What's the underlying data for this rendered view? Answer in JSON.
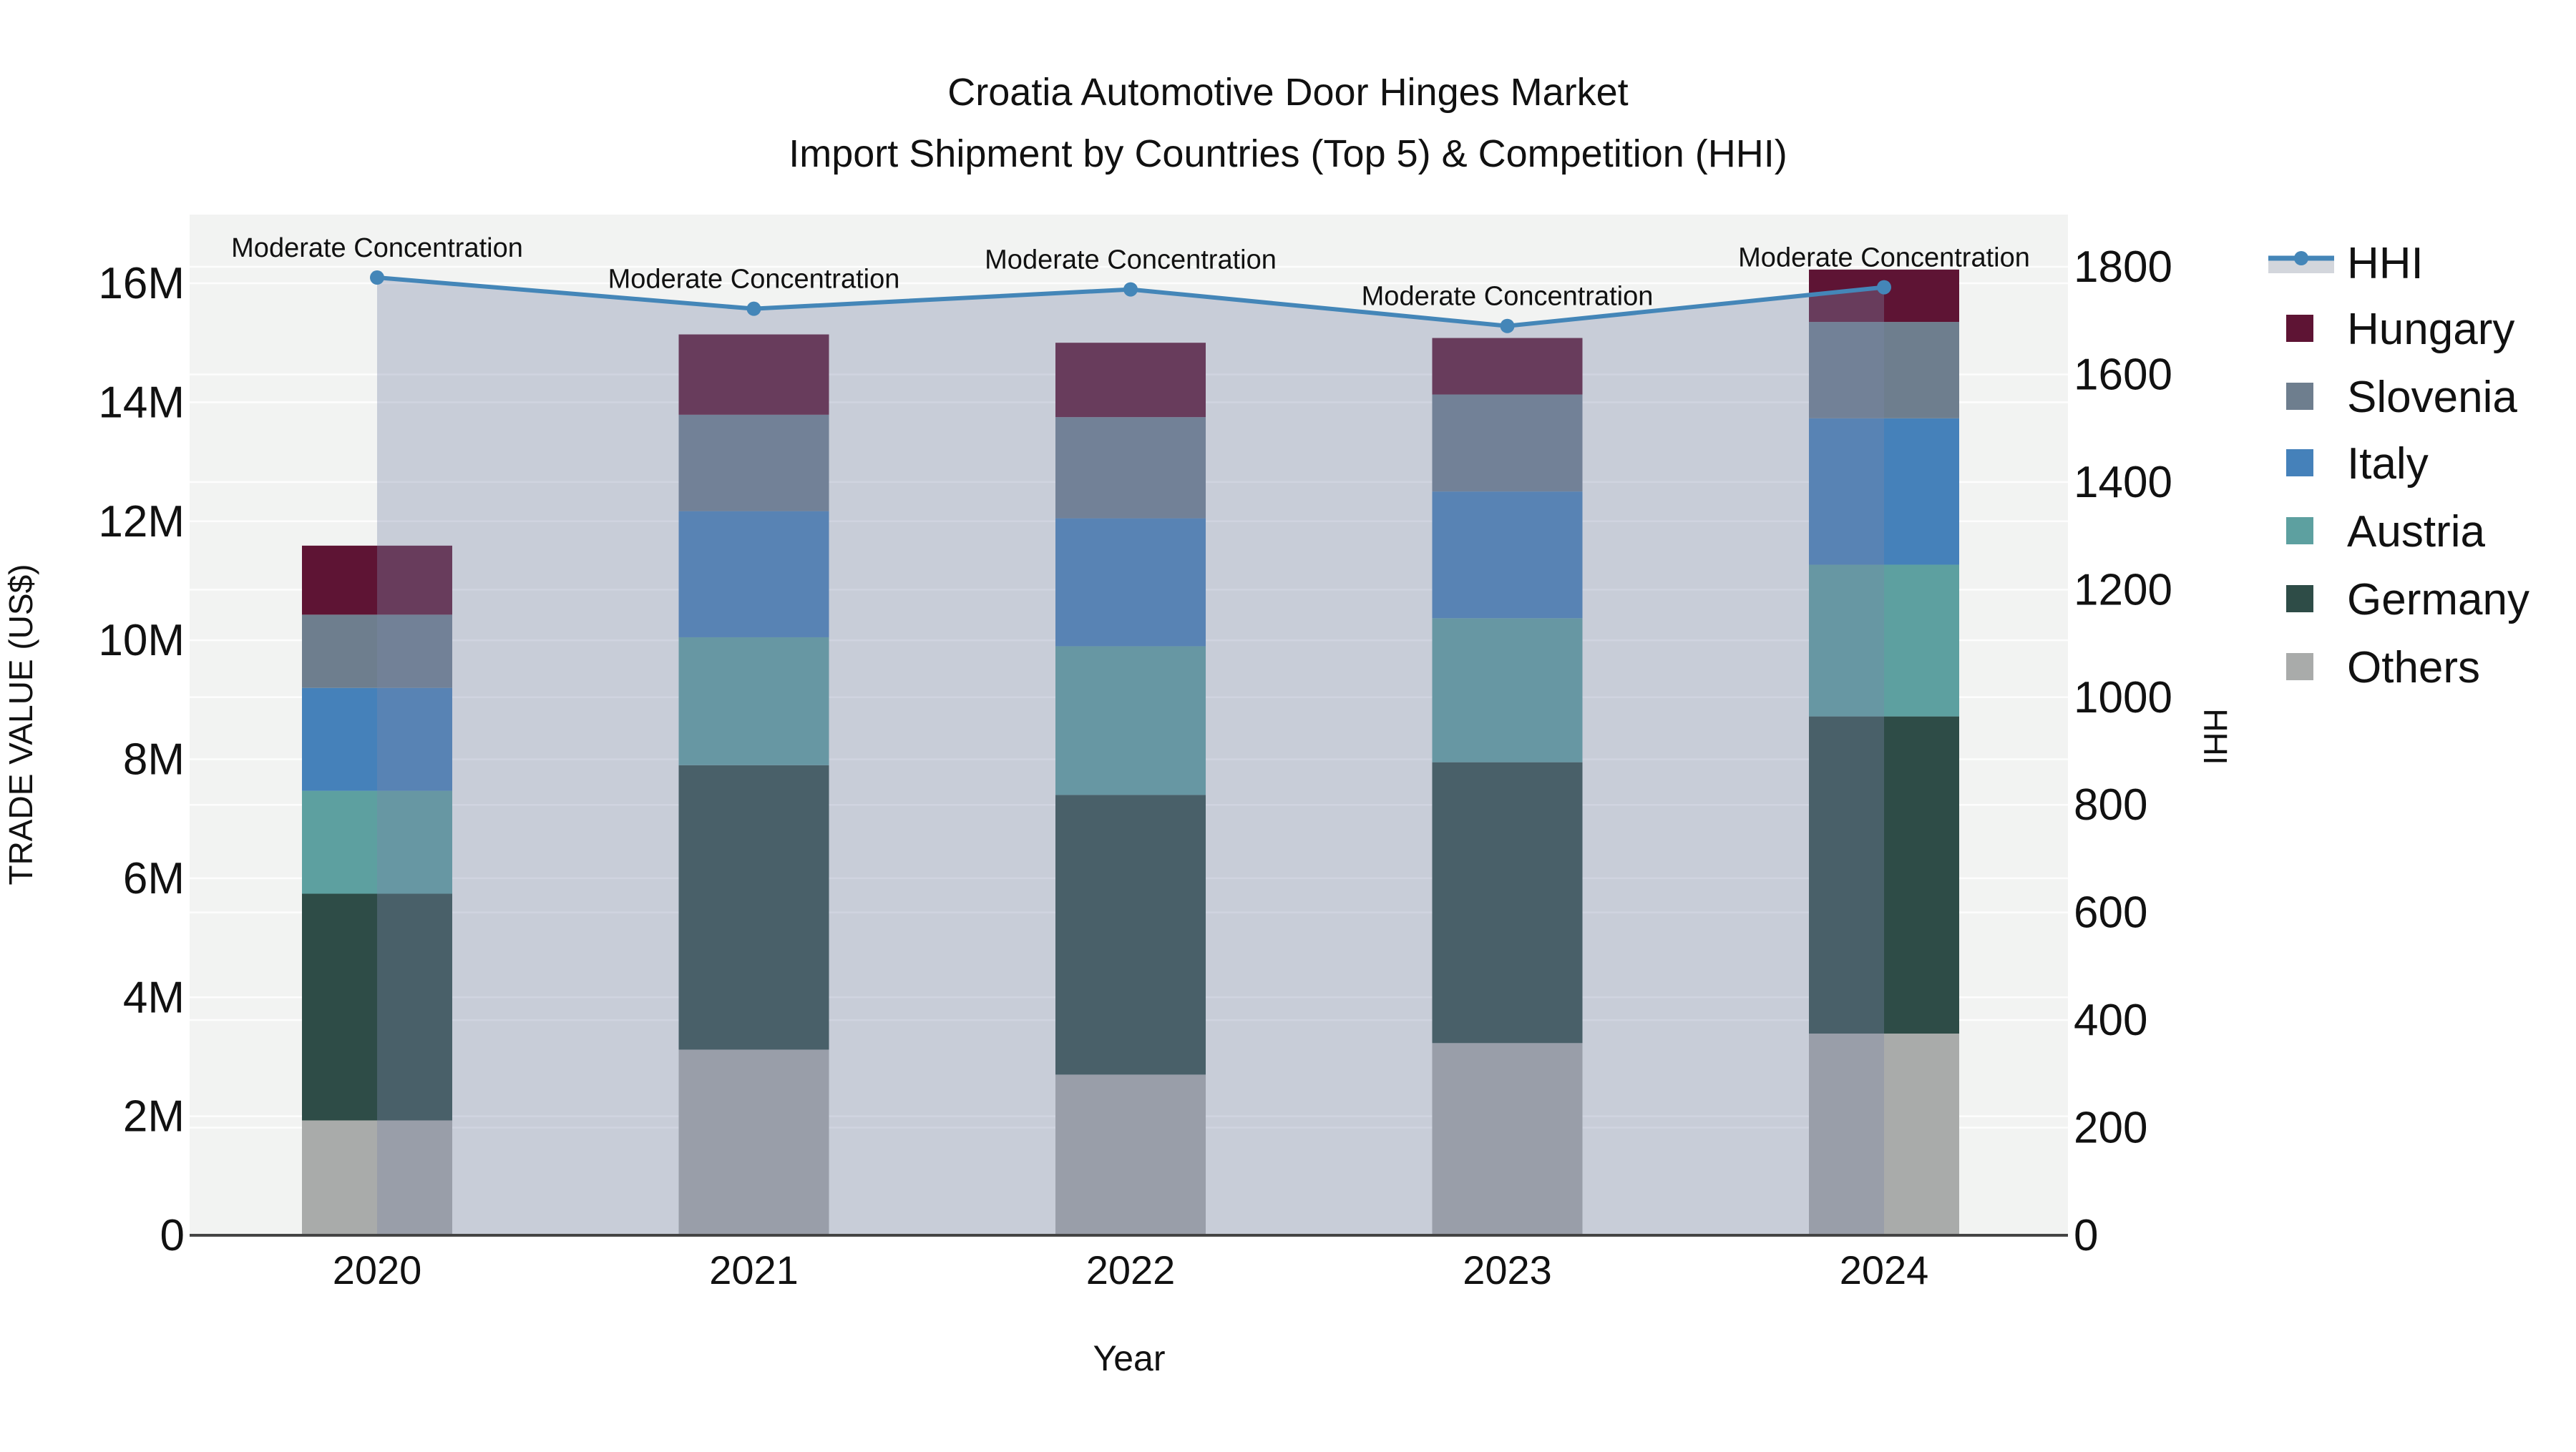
{
  "title": {
    "line1": "Croatia Automotive Door Hinges Market",
    "line2": "Import Shipment by Countries (Top 5) & Competition (HHI)"
  },
  "axes": {
    "x_title": "Year",
    "y_left_title": "TRADE VALUE (US$)",
    "y_right_title": "HHI",
    "x_ticks": [
      "2020",
      "2021",
      "2022",
      "2023",
      "2024"
    ],
    "y_left_ticks": [
      "0",
      "2M",
      "4M",
      "6M",
      "8M",
      "10M",
      "12M",
      "14M",
      "16M"
    ],
    "y_right_ticks": [
      "0",
      "200",
      "400",
      "600",
      "800",
      "1000",
      "1200",
      "1400",
      "1600",
      "1800"
    ]
  },
  "annotation_label": "Moderate Concentration",
  "legend": {
    "items": [
      {
        "label": "HHI",
        "type": "line",
        "color": "#4486b8"
      },
      {
        "label": "Hungary",
        "type": "swatch",
        "color": "#5e1434"
      },
      {
        "label": "Slovenia",
        "type": "swatch",
        "color": "#6e7e8e"
      },
      {
        "label": "Italy",
        "type": "swatch",
        "color": "#4581ba"
      },
      {
        "label": "Austria",
        "type": "swatch",
        "color": "#5da0a0"
      },
      {
        "label": "Germany",
        "type": "swatch",
        "color": "#2e4c47"
      },
      {
        "label": "Others",
        "type": "swatch",
        "color": "#a9abaa"
      }
    ]
  },
  "chart_data": {
    "type": "bar",
    "subtype": "stacked-bars-with-line-overlay",
    "title": "Croatia Automotive Door Hinges Market - Import Shipment by Countries (Top 5) & Competition (HHI)",
    "categories": [
      "2020",
      "2021",
      "2022",
      "2023",
      "2024"
    ],
    "values_unit": "Million US$",
    "stack_order_bottom_to_top": [
      "Others",
      "Germany",
      "Austria",
      "Italy",
      "Slovenia",
      "Hungary"
    ],
    "series": [
      {
        "name": "Others",
        "color": "#a9abaa",
        "values": [
          1.93,
          3.12,
          2.7,
          3.23,
          3.39
        ]
      },
      {
        "name": "Germany",
        "color": "#2e4c47",
        "values": [
          3.81,
          4.78,
          4.7,
          4.72,
          5.33
        ]
      },
      {
        "name": "Austria",
        "color": "#5da0a0",
        "values": [
          1.73,
          2.15,
          2.5,
          2.42,
          2.55
        ]
      },
      {
        "name": "Italy",
        "color": "#4581ba",
        "values": [
          1.73,
          2.12,
          2.15,
          2.13,
          2.46
        ]
      },
      {
        "name": "Slovenia",
        "color": "#6e7e8e",
        "values": [
          1.23,
          1.62,
          1.7,
          1.63,
          1.62
        ]
      },
      {
        "name": "Hungary",
        "color": "#5e1434",
        "values": [
          1.16,
          1.35,
          1.25,
          0.95,
          0.88
        ]
      }
    ],
    "bar_totals": [
      11.59,
      15.14,
      15.0,
      15.08,
      16.23
    ],
    "line_series": {
      "name": "HHI",
      "axis": "right",
      "color": "#4486b8",
      "fill": "tozeroy",
      "fill_color": "rgba(122,134,168,0.35)",
      "values": [
        1780,
        1722,
        1758,
        1690,
        1762
      ],
      "point_annotations": [
        "Moderate Concentration",
        "Moderate Concentration",
        "Moderate Concentration",
        "Moderate Concentration",
        "Moderate Concentration"
      ]
    },
    "xlabel": "Year",
    "ylabel_left": "TRADE VALUE (US$)",
    "ylabel_right": "HHI",
    "ylim_left": [
      0,
      17.15
    ],
    "ylim_right": [
      0,
      1900
    ],
    "grid": true,
    "legend_position": "right"
  },
  "colors": {
    "figure_bg": "#ffffff",
    "plot_bg": "#f2f3f2",
    "grid": "#ffffff",
    "axis_line": "#444444",
    "text": "#111111",
    "hhi_legend_band": "#d3d6dc"
  }
}
